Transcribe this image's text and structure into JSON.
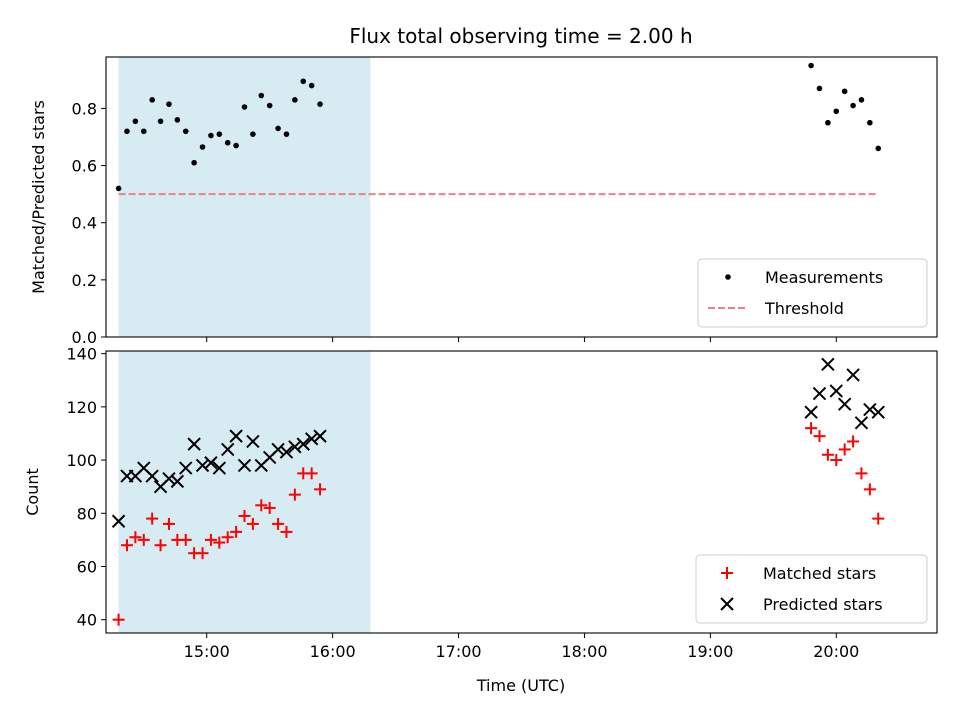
{
  "chart_data": {
    "title": "Flux total observing time = 2.00 h",
    "xlabel": "Time (UTC)",
    "x_ticks": [
      "15:00",
      "16:00",
      "17:00",
      "18:00",
      "19:00",
      "20:00"
    ],
    "x_range": [
      "14:12",
      "20:48"
    ],
    "shaded_interval": {
      "start": "14:18",
      "end": "16:18",
      "color": "#add8e6"
    },
    "colors": {
      "measurements": "#000000",
      "threshold": "#f08080",
      "matched": "#ff0000",
      "predicted": "#000000"
    },
    "panels": [
      {
        "type": "scatter",
        "ylabel": "Matched/Predicted stars",
        "ylim": [
          0,
          0.98
        ],
        "y_ticks": [
          "0.0",
          "0.2",
          "0.4",
          "0.6",
          "0.8"
        ],
        "legend_position": "lower-right",
        "series": [
          {
            "name": "Measurements",
            "marker": "dot",
            "points": [
              [
                "14:18",
                0.52
              ],
              [
                "14:22",
                0.72
              ],
              [
                "14:26",
                0.755
              ],
              [
                "14:30",
                0.72
              ],
              [
                "14:34",
                0.83
              ],
              [
                "14:38",
                0.755
              ],
              [
                "14:42",
                0.815
              ],
              [
                "14:46",
                0.76
              ],
              [
                "14:50",
                0.72
              ],
              [
                "14:54",
                0.61
              ],
              [
                "14:58",
                0.665
              ],
              [
                "15:02",
                0.705
              ],
              [
                "15:06",
                0.71
              ],
              [
                "15:10",
                0.68
              ],
              [
                "15:14",
                0.67
              ],
              [
                "15:18",
                0.805
              ],
              [
                "15:22",
                0.71
              ],
              [
                "15:26",
                0.845
              ],
              [
                "15:30",
                0.81
              ],
              [
                "15:34",
                0.73
              ],
              [
                "15:38",
                0.71
              ],
              [
                "15:42",
                0.83
              ],
              [
                "15:46",
                0.895
              ],
              [
                "15:50",
                0.88
              ],
              [
                "15:54",
                0.815
              ],
              [
                "19:48",
                0.95
              ],
              [
                "19:52",
                0.87
              ],
              [
                "19:56",
                0.75
              ],
              [
                "20:00",
                0.79
              ],
              [
                "20:04",
                0.86
              ],
              [
                "20:08",
                0.81
              ],
              [
                "20:12",
                0.83
              ],
              [
                "20:16",
                0.75
              ],
              [
                "20:20",
                0.66
              ]
            ]
          },
          {
            "name": "Threshold",
            "style": "dashed",
            "points": [
              [
                "14:18",
                0.5
              ],
              [
                "20:20",
                0.5
              ]
            ]
          }
        ]
      },
      {
        "type": "scatter",
        "ylabel": "Count",
        "ylim": [
          35,
          141
        ],
        "y_ticks": [
          "40",
          "60",
          "80",
          "100",
          "120",
          "140"
        ],
        "legend_position": "lower-right",
        "series": [
          {
            "name": "Matched stars",
            "marker": "plus",
            "points": [
              [
                "14:18",
                40
              ],
              [
                "14:22",
                68
              ],
              [
                "14:26",
                71
              ],
              [
                "14:30",
                70
              ],
              [
                "14:34",
                78
              ],
              [
                "14:38",
                68
              ],
              [
                "14:42",
                76
              ],
              [
                "14:46",
                70
              ],
              [
                "14:50",
                70
              ],
              [
                "14:54",
                65
              ],
              [
                "14:58",
                65
              ],
              [
                "15:02",
                70
              ],
              [
                "15:06",
                69
              ],
              [
                "15:10",
                71
              ],
              [
                "15:14",
                73
              ],
              [
                "15:18",
                79
              ],
              [
                "15:22",
                76
              ],
              [
                "15:26",
                83
              ],
              [
                "15:30",
                82
              ],
              [
                "15:34",
                76
              ],
              [
                "15:38",
                73
              ],
              [
                "15:42",
                87
              ],
              [
                "15:46",
                95
              ],
              [
                "15:50",
                95
              ],
              [
                "15:54",
                89
              ],
              [
                "19:48",
                112
              ],
              [
                "19:52",
                109
              ],
              [
                "19:56",
                102
              ],
              [
                "20:00",
                100
              ],
              [
                "20:04",
                104
              ],
              [
                "20:08",
                107
              ],
              [
                "20:12",
                95
              ],
              [
                "20:16",
                89
              ],
              [
                "20:20",
                78
              ]
            ]
          },
          {
            "name": "Predicted stars",
            "marker": "x",
            "points": [
              [
                "14:18",
                77
              ],
              [
                "14:22",
                94
              ],
              [
                "14:26",
                94
              ],
              [
                "14:30",
                97
              ],
              [
                "14:34",
                94
              ],
              [
                "14:38",
                90
              ],
              [
                "14:42",
                93
              ],
              [
                "14:46",
                92
              ],
              [
                "14:50",
                97
              ],
              [
                "14:54",
                106
              ],
              [
                "14:58",
                98
              ],
              [
                "15:02",
                99
              ],
              [
                "15:06",
                97
              ],
              [
                "15:10",
                104
              ],
              [
                "15:14",
                109
              ],
              [
                "15:18",
                98
              ],
              [
                "15:22",
                107
              ],
              [
                "15:26",
                98
              ],
              [
                "15:30",
                101
              ],
              [
                "15:34",
                104
              ],
              [
                "15:38",
                103
              ],
              [
                "15:42",
                105
              ],
              [
                "15:46",
                106
              ],
              [
                "15:50",
                108
              ],
              [
                "15:54",
                109
              ],
              [
                "19:48",
                118
              ],
              [
                "19:52",
                125
              ],
              [
                "19:56",
                136
              ],
              [
                "20:00",
                126
              ],
              [
                "20:04",
                121
              ],
              [
                "20:08",
                132
              ],
              [
                "20:12",
                114
              ],
              [
                "20:16",
                119
              ],
              [
                "20:20",
                118
              ]
            ]
          }
        ]
      }
    ]
  }
}
